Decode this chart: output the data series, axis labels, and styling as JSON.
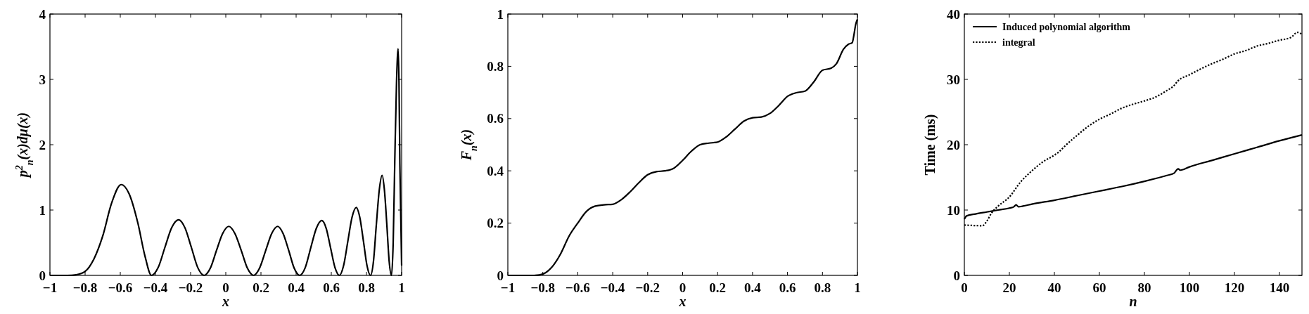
{
  "chart_data": [
    {
      "type": "line",
      "xlabel": "x",
      "ylabel": "p$^{2}$$_{n}$(x)dμ(x)",
      "xlim": [
        -1,
        1
      ],
      "ylim": [
        0,
        4
      ],
      "xticks": [
        -1,
        -0.8,
        -0.6,
        -0.4,
        -0.2,
        0,
        0.2,
        0.4,
        0.6,
        0.8,
        1
      ],
      "yticks": [
        0,
        1,
        2,
        3,
        4
      ],
      "grid": false,
      "legend": false,
      "series": [
        {
          "color": "#000000",
          "x": [
            -1,
            -0.9,
            -0.85,
            -0.8,
            -0.75,
            -0.7,
            -0.65,
            -0.595,
            -0.55,
            -0.5,
            -0.46,
            -0.423,
            -0.3845,
            -0.346,
            -0.3075,
            -0.269,
            -0.2325,
            -0.196,
            -0.1595,
            -0.123,
            -0.088,
            -0.053,
            -0.018,
            0.017,
            0.052,
            0.088,
            0.123,
            0.158,
            0.192,
            0.227,
            0.261,
            0.295,
            0.326,
            0.358,
            0.389,
            0.42,
            0.452,
            0.483,
            0.515,
            0.546,
            0.571,
            0.596,
            0.621,
            0.646,
            0.67,
            0.694,
            0.718,
            0.742,
            0.762,
            0.783,
            0.803,
            0.823,
            0.84,
            0.856,
            0.873,
            0.889,
            0.902,
            0.916,
            0.929,
            0.942,
            0.952,
            0.961,
            0.971,
            0.98,
            0.985,
            0.99,
            1
          ],
          "values": [
            0,
            0,
            0.01,
            0.06,
            0.25,
            0.6,
            1.1,
            1.39,
            1.25,
            0.8,
            0.3,
            0,
            0.12,
            0.43,
            0.73,
            0.85,
            0.73,
            0.43,
            0.12,
            0,
            0.11,
            0.38,
            0.64,
            0.75,
            0.64,
            0.38,
            0.11,
            0,
            0.11,
            0.38,
            0.64,
            0.75,
            0.64,
            0.38,
            0.11,
            0,
            0.12,
            0.42,
            0.72,
            0.84,
            0.72,
            0.42,
            0.12,
            0,
            0.15,
            0.52,
            0.89,
            1.04,
            0.89,
            0.52,
            0.15,
            0,
            0.22,
            0.77,
            1.31,
            1.53,
            1.31,
            0.77,
            0.22,
            0,
            0.5,
            1.74,
            2.96,
            3.47,
            2.96,
            1.7,
            0.15
          ]
        }
      ]
    },
    {
      "type": "line",
      "xlabel": "x",
      "ylabel": "F$_{n}$(x)",
      "xlim": [
        -1,
        1
      ],
      "ylim": [
        0,
        1
      ],
      "xticks": [
        -1,
        -0.8,
        -0.6,
        -0.4,
        -0.2,
        0,
        0.2,
        0.4,
        0.6,
        0.8,
        1
      ],
      "yticks": [
        0,
        0.2,
        0.4,
        0.6,
        0.8,
        1
      ],
      "grid": false,
      "legend": false,
      "series": [
        {
          "color": "#000000",
          "x": [
            -1,
            -0.85,
            -0.8,
            -0.75,
            -0.7,
            -0.65,
            -0.6,
            -0.55,
            -0.5,
            -0.45,
            -0.4,
            -0.35,
            -0.3,
            -0.25,
            -0.2,
            -0.15,
            -0.1,
            -0.05,
            0,
            0.05,
            0.1,
            0.15,
            0.2,
            0.25,
            0.3,
            0.35,
            0.4,
            0.45,
            0.5,
            0.55,
            0.6,
            0.65,
            0.7,
            0.75,
            0.8,
            0.85,
            0.88,
            0.92,
            0.95,
            0.97,
            0.98,
            0.99,
            1
          ],
          "values": [
            0,
            0,
            0.005,
            0.03,
            0.08,
            0.15,
            0.2,
            0.245,
            0.265,
            0.27,
            0.272,
            0.29,
            0.32,
            0.355,
            0.385,
            0.397,
            0.4,
            0.41,
            0.44,
            0.475,
            0.5,
            0.506,
            0.51,
            0.53,
            0.56,
            0.59,
            0.603,
            0.606,
            0.62,
            0.65,
            0.685,
            0.699,
            0.705,
            0.74,
            0.785,
            0.793,
            0.81,
            0.865,
            0.885,
            0.89,
            0.92,
            0.96,
            0.98
          ]
        }
      ]
    },
    {
      "type": "line",
      "xlabel": "n",
      "ylabel": "Time (ms)",
      "xlim": [
        0,
        150
      ],
      "ylim": [
        0,
        40
      ],
      "xticks": [
        0,
        20,
        40,
        60,
        80,
        100,
        120,
        140
      ],
      "yticks": [
        0,
        10,
        20,
        30,
        40
      ],
      "grid": false,
      "legend": "top left",
      "series": [
        {
          "name": "Induced polynomial algorithm",
          "color": "#000000",
          "line_style": "solid",
          "x": [
            0,
            1,
            5,
            10,
            15,
            20,
            22,
            23,
            24,
            26,
            30,
            40,
            50,
            60,
            70,
            80,
            90,
            93,
            95,
            96,
            100,
            110,
            120,
            130,
            140,
            150
          ],
          "values": [
            8.6,
            9.1,
            9.4,
            9.7,
            10.0,
            10.3,
            10.5,
            10.8,
            10.5,
            10.6,
            10.9,
            11.5,
            12.2,
            12.9,
            13.6,
            14.4,
            15.3,
            15.6,
            16.3,
            16.1,
            16.6,
            17.6,
            18.6,
            19.6,
            20.6,
            21.5
          ]
        },
        {
          "name": "integral",
          "color": "#000000",
          "line_style": "dotted",
          "x": [
            0,
            8,
            10,
            12,
            15,
            20,
            25,
            30,
            35,
            40,
            42,
            45,
            50,
            55,
            60,
            65,
            70,
            75,
            80,
            85,
            90,
            93,
            95,
            100,
            105,
            110,
            115,
            120,
            125,
            130,
            135,
            140,
            145,
            148,
            150
          ],
          "values": [
            7.7,
            7.6,
            8.3,
            9.5,
            10.6,
            12.0,
            14.3,
            16.0,
            17.4,
            18.4,
            18.9,
            19.9,
            21.4,
            22.8,
            23.9,
            24.7,
            25.6,
            26.2,
            26.7,
            27.3,
            28.3,
            29.0,
            29.8,
            30.7,
            31.6,
            32.4,
            33.1,
            33.9,
            34.4,
            35.1,
            35.5,
            36.0,
            36.4,
            37.2,
            36.9
          ]
        }
      ]
    }
  ]
}
